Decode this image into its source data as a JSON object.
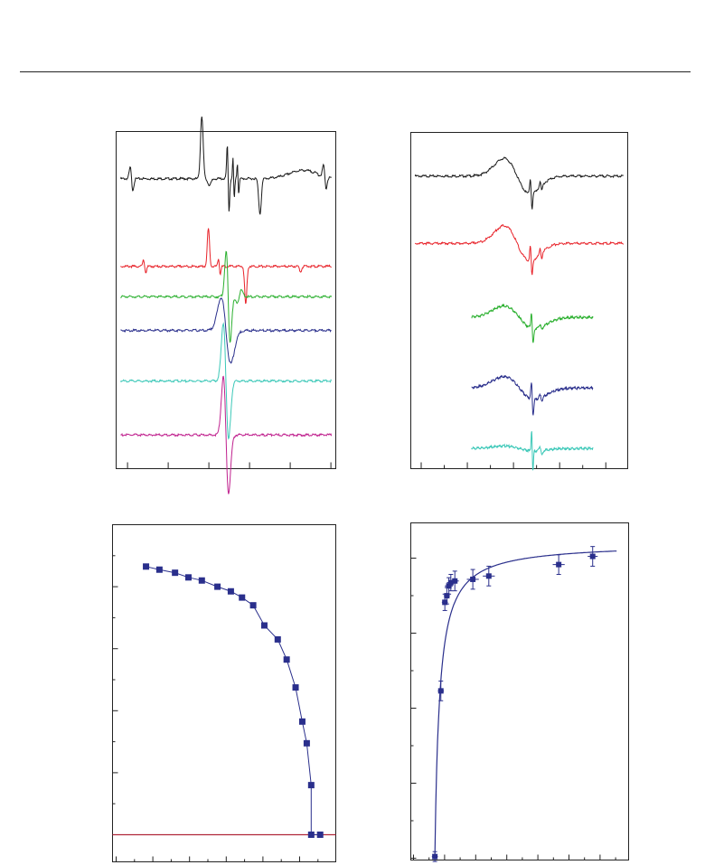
{
  "figure": {
    "title": ""
  },
  "chart_data": [
    {
      "type": "line",
      "panel": "top-left",
      "title": "",
      "xlabel": "",
      "ylabel": "",
      "xlim": [
        0,
        1
      ],
      "xticks_major": 5,
      "grid": false,
      "legend": "none",
      "series": [
        {
          "color": "#1a1a1a",
          "offset": 0.86,
          "profile": "multi-hyperfine"
        },
        {
          "color": "#e8232a",
          "offset": 0.6,
          "profile": "multi-narrow"
        },
        {
          "color": "#2bb02f",
          "offset": 0.51,
          "profile": "derivative-shifted"
        },
        {
          "color": "#2a2f8c",
          "offset": 0.41,
          "profile": "derivative-broad"
        },
        {
          "color": "#3cc8b8",
          "offset": 0.26,
          "profile": "derivative"
        },
        {
          "color": "#c0218e",
          "offset": 0.1,
          "profile": "derivative"
        }
      ]
    },
    {
      "type": "line",
      "panel": "top-right",
      "title": "",
      "xlabel": "",
      "ylabel": "",
      "xlim": [
        0,
        1
      ],
      "xticks_major": 4,
      "grid": false,
      "legend": "none",
      "series": [
        {
          "color": "#1a1a1a",
          "offset": 0.87,
          "profile": "broad-plus-narrow"
        },
        {
          "color": "#e8232a",
          "offset": 0.67,
          "profile": "broad-plus-narrow"
        },
        {
          "color": "#2bb02f",
          "offset": 0.45,
          "profile": "partial"
        },
        {
          "color": "#2a2f8c",
          "offset": 0.24,
          "profile": "partial"
        },
        {
          "color": "#3cc8b8",
          "offset": 0.06,
          "profile": "partial-narrow"
        }
      ]
    },
    {
      "type": "line",
      "panel": "bottom-left",
      "title": "",
      "xlabel": "",
      "ylabel": "",
      "xlim": [
        0,
        100
      ],
      "ylim": [
        0,
        100
      ],
      "grid": false,
      "legend": "none",
      "marker": "square",
      "color": "#2a2f8c",
      "reference_line": {
        "y": 0,
        "color": "#b0283a"
      },
      "points": [
        {
          "x": 15,
          "y": 86.5
        },
        {
          "x": 21,
          "y": 85.5
        },
        {
          "x": 28,
          "y": 84.5
        },
        {
          "x": 34,
          "y": 83
        },
        {
          "x": 40,
          "y": 82
        },
        {
          "x": 47,
          "y": 80
        },
        {
          "x": 53,
          "y": 78.5
        },
        {
          "x": 58,
          "y": 76.5
        },
        {
          "x": 63,
          "y": 74
        },
        {
          "x": 68,
          "y": 67.5
        },
        {
          "x": 74,
          "y": 63
        },
        {
          "x": 78,
          "y": 56.5
        },
        {
          "x": 82,
          "y": 47.5
        },
        {
          "x": 85,
          "y": 36.5
        },
        {
          "x": 87,
          "y": 29.5
        },
        {
          "x": 89,
          "y": 16
        },
        {
          "x": 89,
          "y": 0
        },
        {
          "x": 93,
          "y": 0
        }
      ]
    },
    {
      "type": "scatter",
      "panel": "bottom-right",
      "title": "",
      "xlabel": "",
      "ylabel": "",
      "xlim": [
        0,
        100
      ],
      "ylim": [
        0,
        100
      ],
      "grid": false,
      "legend": "none",
      "marker": "square",
      "color": "#2a2f8c",
      "fit_color": "#2a2f8c",
      "points": [
        {
          "x": 3,
          "y": 0.5,
          "ex": 1.5,
          "ey": 1.5
        },
        {
          "x": 6,
          "y": 51,
          "ex": 1.5,
          "ey": 3
        },
        {
          "x": 8,
          "y": 78,
          "ex": 1.5,
          "ey": 2.5
        },
        {
          "x": 9,
          "y": 80,
          "ex": 1.5,
          "ey": 2.5
        },
        {
          "x": 10,
          "y": 83,
          "ex": 2,
          "ey": 2.5
        },
        {
          "x": 11,
          "y": 84,
          "ex": 2,
          "ey": 2.5
        },
        {
          "x": 13,
          "y": 84.5,
          "ex": 2,
          "ey": 3
        },
        {
          "x": 22,
          "y": 85,
          "ex": 3,
          "ey": 3
        },
        {
          "x": 30,
          "y": 86,
          "ex": 3,
          "ey": 3
        },
        {
          "x": 65,
          "y": 89.5,
          "ex": 3,
          "ey": 3
        },
        {
          "x": 82,
          "y": 92,
          "ex": 2.5,
          "ey": 3
        }
      ]
    }
  ]
}
